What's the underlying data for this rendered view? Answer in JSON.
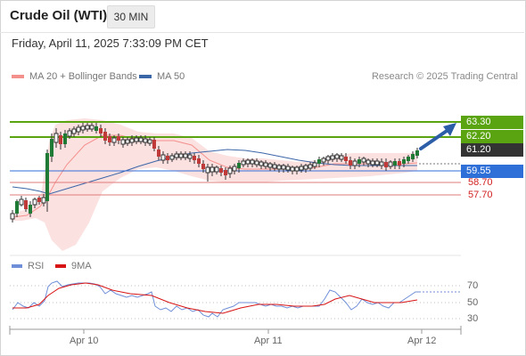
{
  "header": {
    "title": "Crude Oil (WTI)",
    "interval": "30 MIN"
  },
  "datetime": "Friday, April 11, 2025 7:33:09 PM CET",
  "legend": {
    "bollinger": {
      "label": "MA 20 + Bollinger Bands",
      "color": "#f4908c"
    },
    "ma50": {
      "label": "MA 50",
      "color": "#3b66a8"
    }
  },
  "research": "Research © 2025 Trading Central",
  "rsi_legend": {
    "rsi": {
      "label": "RSI",
      "color": "#6f8fd8"
    },
    "ma9": {
      "label": "9MA",
      "color": "#d81414"
    }
  },
  "price_levels": [
    {
      "value": "63.30",
      "kind": "resistance",
      "color": "#5aa412"
    },
    {
      "value": "62.20",
      "kind": "resistance",
      "color": "#5aa412"
    },
    {
      "value": "61.20",
      "kind": "last",
      "color": "#333333"
    },
    {
      "value": "59.55",
      "kind": "pivot",
      "color": "#2f6fd8"
    },
    {
      "value": "58.70",
      "kind": "support",
      "color": "#d11f1f"
    },
    {
      "value": "57.70",
      "kind": "support",
      "color": "#d11f1f"
    }
  ],
  "rsi_axis": [
    "70",
    "50",
    "30"
  ],
  "x_axis": [
    "Apr 10",
    "Apr 11",
    "Apr 12"
  ]
}
